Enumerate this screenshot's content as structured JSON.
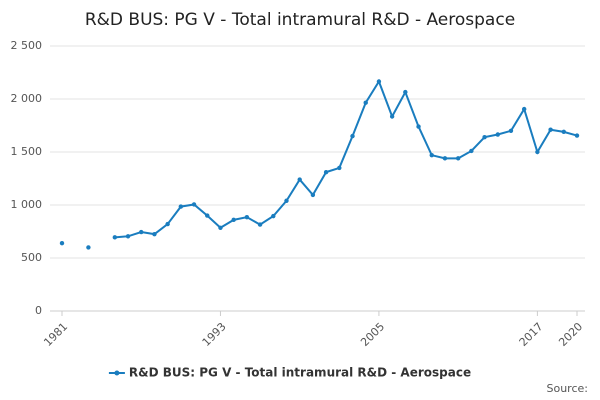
{
  "chart_data": {
    "type": "line",
    "title": "R&D BUS: PG V - Total intramural R&D - Aerospace",
    "x": [
      1981,
      1982,
      1983,
      1984,
      1985,
      1986,
      1987,
      1988,
      1989,
      1990,
      1991,
      1992,
      1993,
      1994,
      1995,
      1996,
      1997,
      1998,
      1999,
      2000,
      2001,
      2002,
      2003,
      2004,
      2005,
      2006,
      2007,
      2008,
      2009,
      2010,
      2011,
      2012,
      2013,
      2014,
      2015,
      2016,
      2017,
      2018,
      2019,
      2020
    ],
    "series": [
      {
        "name": "R&D BUS: PG V - Total intramural R&D - Aerospace",
        "color": "#1a7dbf",
        "values": [
          640,
          null,
          600,
          null,
          695,
          705,
          745,
          725,
          820,
          985,
          1005,
          900,
          785,
          860,
          885,
          815,
          895,
          1040,
          1240,
          1095,
          1310,
          1350,
          1650,
          1965,
          2165,
          1835,
          2065,
          1740,
          1470,
          1440,
          1440,
          1510,
          1640,
          1665,
          1700,
          1905,
          1500,
          1710,
          1690,
          1655
        ]
      }
    ],
    "xlim": [
      1981,
      2020
    ],
    "xticks": [
      1981,
      1993,
      2005,
      2017,
      2020
    ],
    "ylim": [
      0,
      2500
    ],
    "yticks": [
      0,
      500,
      {
        "value": 1000,
        "label": "1 000"
      },
      {
        "value": 1500,
        "label": "1 500"
      },
      {
        "value": 2000,
        "label": "2 000"
      },
      {
        "value": 2500,
        "label": "2 500"
      }
    ],
    "grid": true,
    "legend": "bottom",
    "source": "Source:"
  }
}
